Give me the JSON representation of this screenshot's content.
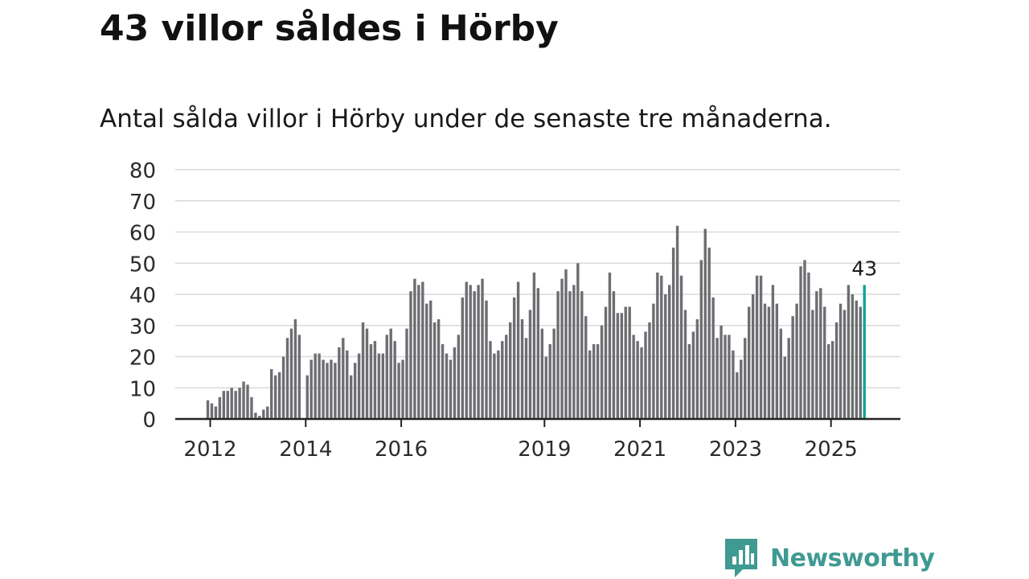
{
  "title": "43 villor såldes i Hörby",
  "subtitle": "Antal sålda villor i Hörby under de senaste tre månaderna.",
  "brand": {
    "name": "Newsworthy",
    "icon": "newsworthy-logo-icon",
    "color": "#3f9a92"
  },
  "chart_data": {
    "type": "bar",
    "title": "",
    "xlabel": "",
    "ylabel": "",
    "ylim": [
      0,
      80
    ],
    "y_ticks": [
      "0",
      "10",
      "20",
      "30",
      "40",
      "50",
      "60",
      "70",
      "80"
    ],
    "x_tick_labels": [
      {
        "label": "2012",
        "index": 0
      },
      {
        "label": "2014",
        "index": 24
      },
      {
        "label": "2016",
        "index": 48
      },
      {
        "label": "2019",
        "index": 84
      },
      {
        "label": "2021",
        "index": 108
      },
      {
        "label": "2023",
        "index": 132
      },
      {
        "label": "2025",
        "index": 156
      }
    ],
    "grid": true,
    "bar_color": "#6e6d72",
    "highlight_color": "#12a396",
    "highlight_label": "43",
    "values": [
      6,
      5,
      4,
      7,
      9,
      9,
      10,
      9,
      10,
      12,
      11,
      7,
      2,
      1,
      3,
      4,
      16,
      14,
      15,
      20,
      26,
      29,
      32,
      27,
      0,
      14,
      19,
      21,
      21,
      19,
      18,
      19,
      18,
      23,
      26,
      22,
      14,
      18,
      21,
      31,
      29,
      24,
      25,
      21,
      21,
      27,
      29,
      25,
      18,
      19,
      29,
      41,
      45,
      43,
      44,
      37,
      38,
      31,
      32,
      24,
      21,
      19,
      23,
      27,
      39,
      44,
      43,
      41,
      43,
      45,
      38,
      25,
      21,
      22,
      25,
      27,
      31,
      39,
      44,
      32,
      26,
      35,
      47,
      42,
      29,
      20,
      24,
      29,
      41,
      45,
      48,
      41,
      43,
      50,
      41,
      33,
      22,
      24,
      24,
      30,
      36,
      47,
      41,
      34,
      34,
      36,
      36,
      27,
      25,
      23,
      28,
      31,
      37,
      47,
      46,
      40,
      43,
      55,
      62,
      46,
      35,
      24,
      28,
      32,
      51,
      61,
      55,
      39,
      26,
      30,
      27,
      27,
      22,
      15,
      19,
      26,
      36,
      40,
      46,
      46,
      37,
      36,
      43,
      37,
      29,
      20,
      26,
      33,
      37,
      49,
      51,
      47,
      35,
      41,
      42,
      36,
      24,
      25,
      31,
      37,
      35,
      43,
      40,
      38,
      36,
      43
    ]
  }
}
